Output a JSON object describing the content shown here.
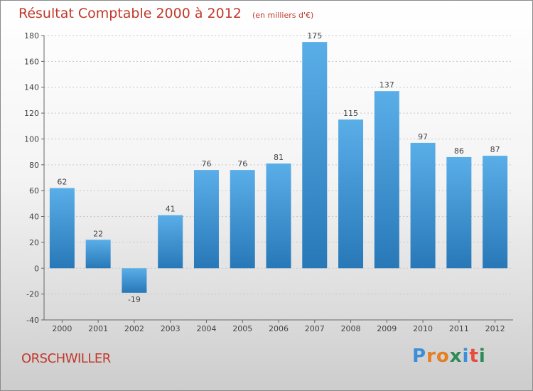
{
  "header": {
    "title": "Résultat Comptable 2000 à 2012",
    "unit": "(en milliers d'€)"
  },
  "footer": {
    "commune": "ORSCHWILLER",
    "logo_letters": [
      "P",
      "r",
      "o",
      "x",
      "i",
      "t",
      "i"
    ],
    "logo_colors": [
      "#3b8fd9",
      "#e67e22",
      "#e67e22",
      "#2e8b57",
      "#3b8fd9",
      "#e74c3c",
      "#2e8b57"
    ]
  },
  "colors": {
    "bar_light": "#5aaee8",
    "bar_dark": "#2878b8",
    "title": "#c0392b",
    "grid": "#c8c8c8"
  },
  "chart_data": {
    "type": "bar",
    "title": "Résultat Comptable 2000 à 2012",
    "xlabel": "",
    "ylabel": "",
    "categories": [
      "2000",
      "2001",
      "2002",
      "2003",
      "2004",
      "2005",
      "2006",
      "2007",
      "2008",
      "2009",
      "2010",
      "2011",
      "2012"
    ],
    "values": [
      62,
      22,
      -19,
      41,
      76,
      76,
      81,
      175,
      115,
      137,
      97,
      86,
      87
    ],
    "ylim": [
      -40,
      180
    ],
    "yticks": [
      -40,
      -20,
      0,
      20,
      40,
      60,
      80,
      100,
      120,
      140,
      160,
      180
    ],
    "grid": true
  }
}
